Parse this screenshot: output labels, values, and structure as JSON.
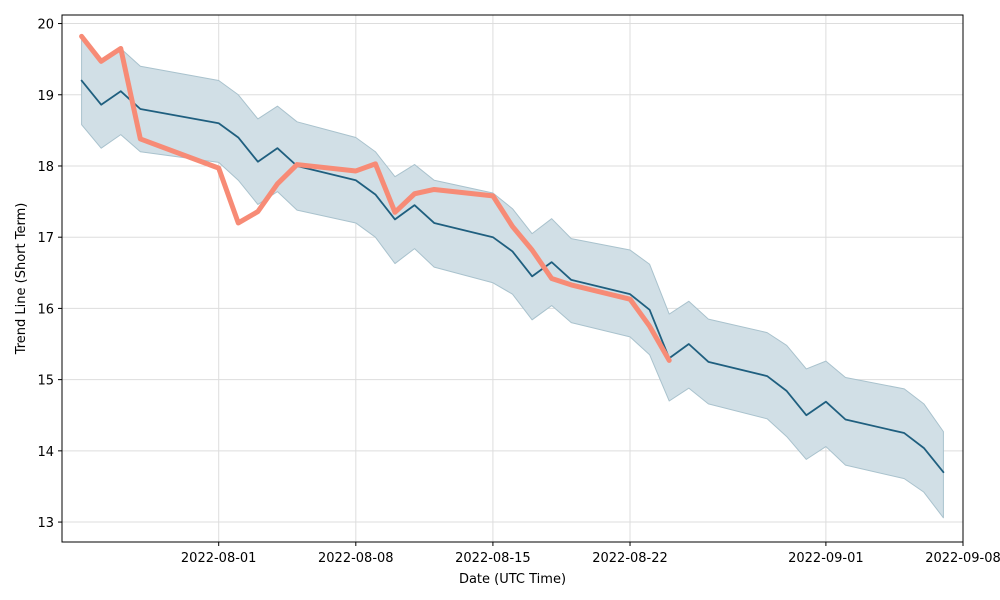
{
  "chart_data": {
    "type": "line",
    "xlabel": "Date (UTC Time)",
    "ylabel": "Trend Line (Short Term)",
    "xlim": [
      "2022-07-24",
      "2022-09-08"
    ],
    "ylim": [
      12.72,
      20.12
    ],
    "xticks": [
      {
        "date": "2022-08-01",
        "label": "2022-08-01"
      },
      {
        "date": "2022-08-08",
        "label": "2022-08-08"
      },
      {
        "date": "2022-08-15",
        "label": "2022-08-15"
      },
      {
        "date": "2022-08-22",
        "label": "2022-08-22"
      },
      {
        "date": "2022-09-01",
        "label": "2022-09-01"
      },
      {
        "date": "2022-09-08",
        "label": "2022-09-08"
      }
    ],
    "yticks": [
      13,
      14,
      15,
      16,
      17,
      18,
      19,
      20
    ],
    "grid": true,
    "colors": {
      "trend": "#1f5f7f",
      "band_fill": "#d1dfe6",
      "band_edge": "#a9c2cd",
      "actual": "#f78b76",
      "grid": "#dddddd"
    },
    "band": {
      "x": [
        "2022-07-25",
        "2022-07-26",
        "2022-07-27",
        "2022-07-28",
        "2022-08-01",
        "2022-08-02",
        "2022-08-03",
        "2022-08-04",
        "2022-08-05",
        "2022-08-08",
        "2022-08-09",
        "2022-08-10",
        "2022-08-11",
        "2022-08-12",
        "2022-08-15",
        "2022-08-16",
        "2022-08-17",
        "2022-08-18",
        "2022-08-19",
        "2022-08-22",
        "2022-08-23",
        "2022-08-24",
        "2022-08-25",
        "2022-08-26",
        "2022-08-29",
        "2022-08-30",
        "2022-08-31",
        "2022-09-01",
        "2022-09-02",
        "2022-09-05",
        "2022-09-06",
        "2022-09-07"
      ],
      "upper": [
        19.82,
        19.45,
        19.65,
        19.4,
        19.2,
        19.0,
        18.66,
        18.84,
        18.62,
        18.4,
        18.2,
        17.85,
        18.02,
        17.8,
        17.62,
        17.4,
        17.05,
        17.26,
        16.98,
        16.82,
        16.62,
        15.92,
        16.1,
        15.85,
        15.66,
        15.48,
        15.15,
        15.26,
        15.03,
        14.87,
        14.66,
        14.27
      ],
      "lower": [
        18.58,
        18.25,
        18.44,
        18.2,
        18.05,
        17.8,
        17.46,
        17.64,
        17.38,
        17.2,
        17.0,
        16.63,
        16.84,
        16.58,
        16.36,
        16.2,
        15.84,
        16.04,
        15.8,
        15.6,
        15.35,
        14.7,
        14.88,
        14.66,
        14.45,
        14.2,
        13.88,
        14.06,
        13.8,
        13.61,
        13.42,
        13.06
      ]
    },
    "series": [
      {
        "key": "trend",
        "x": [
          "2022-07-25",
          "2022-07-26",
          "2022-07-27",
          "2022-07-28",
          "2022-08-01",
          "2022-08-02",
          "2022-08-03",
          "2022-08-04",
          "2022-08-05",
          "2022-08-08",
          "2022-08-09",
          "2022-08-10",
          "2022-08-11",
          "2022-08-12",
          "2022-08-15",
          "2022-08-16",
          "2022-08-17",
          "2022-08-18",
          "2022-08-19",
          "2022-08-22",
          "2022-08-23",
          "2022-08-24",
          "2022-08-25",
          "2022-08-26",
          "2022-08-29",
          "2022-08-30",
          "2022-08-31",
          "2022-09-01",
          "2022-09-02",
          "2022-09-05",
          "2022-09-06",
          "2022-09-07"
        ],
        "y": [
          19.2,
          18.86,
          19.05,
          18.8,
          18.6,
          18.4,
          18.06,
          18.25,
          18.0,
          17.8,
          17.6,
          17.25,
          17.45,
          17.2,
          17.0,
          16.8,
          16.45,
          16.65,
          16.4,
          16.2,
          15.98,
          15.3,
          15.5,
          15.25,
          15.05,
          14.84,
          14.5,
          14.69,
          14.44,
          14.25,
          14.04,
          13.7
        ]
      },
      {
        "key": "actual",
        "x": [
          "2022-07-25",
          "2022-07-26",
          "2022-07-27",
          "2022-07-28",
          "2022-08-01",
          "2022-08-02",
          "2022-08-03",
          "2022-08-04",
          "2022-08-05",
          "2022-08-08",
          "2022-08-09",
          "2022-08-10",
          "2022-08-11",
          "2022-08-12",
          "2022-08-15",
          "2022-08-16",
          "2022-08-17",
          "2022-08-18",
          "2022-08-19",
          "2022-08-22",
          "2022-08-23",
          "2022-08-24"
        ],
        "y": [
          19.82,
          19.47,
          19.65,
          18.38,
          17.97,
          17.2,
          17.36,
          17.75,
          18.02,
          17.93,
          18.03,
          17.35,
          17.61,
          17.67,
          17.58,
          17.15,
          16.82,
          16.42,
          16.33,
          16.13,
          15.75,
          15.27
        ]
      }
    ]
  }
}
